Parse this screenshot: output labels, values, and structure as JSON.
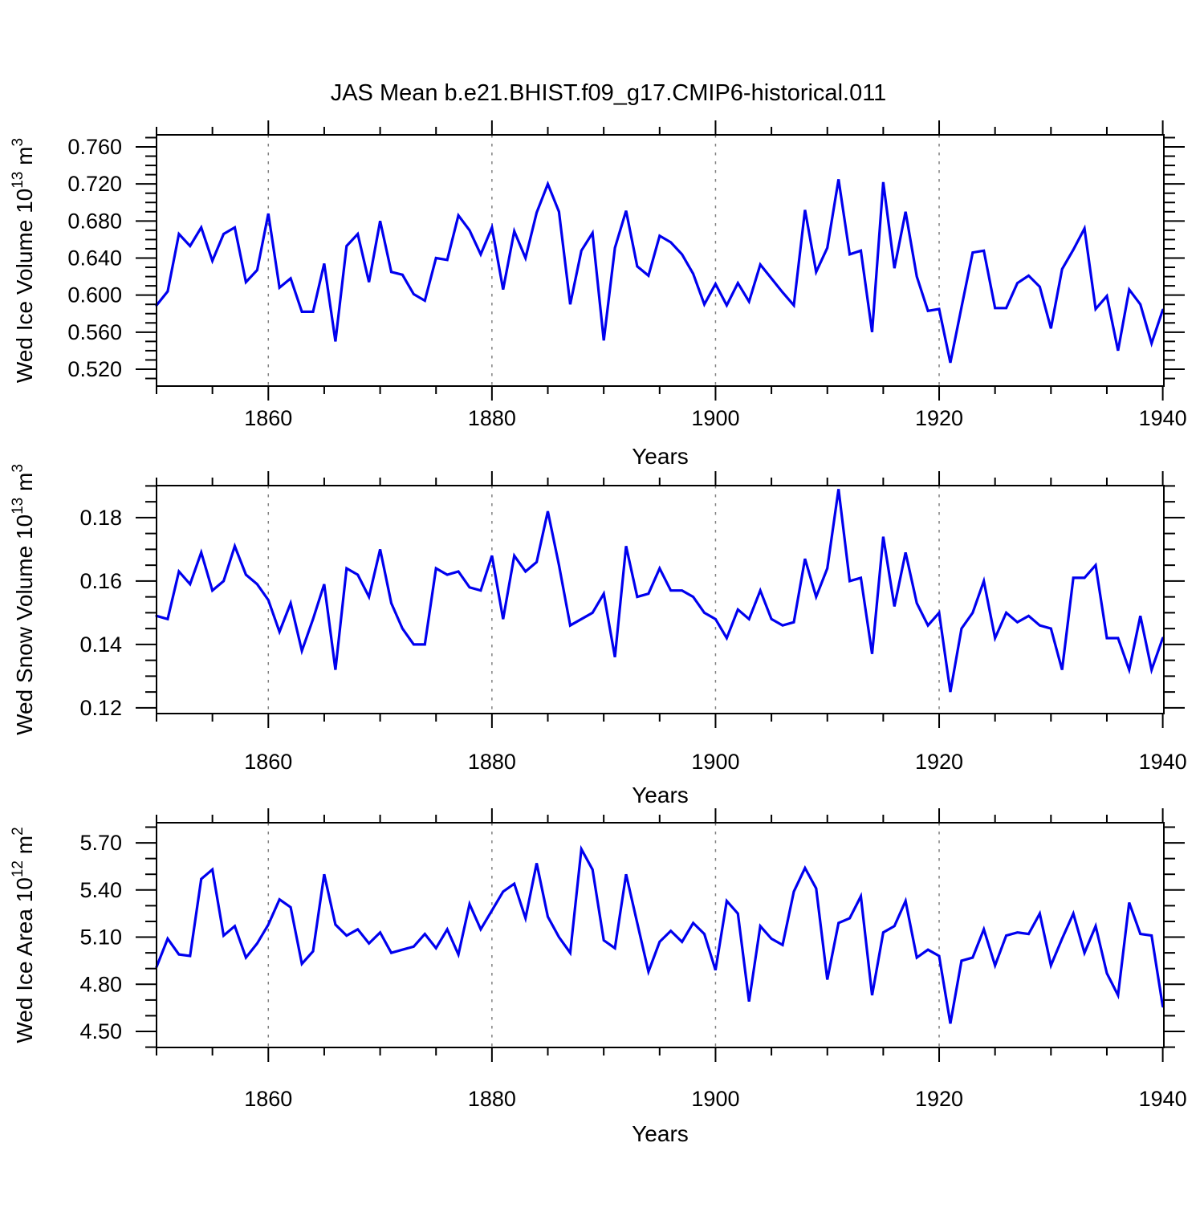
{
  "title": "JAS Mean b.e21.BHIST.f09_g17.CMIP6-historical.011",
  "style": {
    "line_color": "#0000ee",
    "axis_color": "#000000",
    "grid_color": "#7f7f7f"
  },
  "x_axis": {
    "label": "Years",
    "lim": [
      1850,
      1940.1
    ],
    "major_ticks": [
      1860,
      1880,
      1900,
      1920,
      1940
    ],
    "minor_step": 5,
    "grid_years": [
      1860,
      1880,
      1900,
      1920
    ]
  },
  "chart_data": [
    {
      "type": "line",
      "name": "wed-ice-volume",
      "ylabel_text": "Wed Ice Volume 10^13 m^3",
      "ylabel": {
        "prefix": "Wed Ice Volume 10",
        "exp": "13",
        "unit": " m",
        "unit_exp": "3"
      },
      "ylim": [
        0.5018,
        0.773
      ],
      "yticks": [
        0.52,
        0.56,
        0.6,
        0.64,
        0.68,
        0.72,
        0.76
      ],
      "ytick_labels": [
        "0.520",
        "0.560",
        "0.600",
        "0.640",
        "0.680",
        "0.720",
        "0.760"
      ],
      "yminor_step": 0.01,
      "x_start": 1850,
      "values": [
        0.589,
        0.604,
        0.666,
        0.653,
        0.673,
        0.637,
        0.666,
        0.673,
        0.614,
        0.627,
        0.688,
        0.608,
        0.618,
        0.582,
        0.582,
        0.634,
        0.55,
        0.653,
        0.666,
        0.614,
        0.68,
        0.625,
        0.622,
        0.601,
        0.594,
        0.64,
        0.638,
        0.686,
        0.67,
        0.644,
        0.673,
        0.606,
        0.669,
        0.64,
        0.689,
        0.72,
        0.69,
        0.59,
        0.648,
        0.667,
        0.551,
        0.651,
        0.691,
        0.631,
        0.621,
        0.664,
        0.657,
        0.644,
        0.623,
        0.59,
        0.612,
        0.589,
        0.613,
        0.593,
        0.633,
        0.618,
        0.603,
        0.589,
        0.692,
        0.625,
        0.651,
        0.725,
        0.644,
        0.648,
        0.56,
        0.722,
        0.629,
        0.69,
        0.62,
        0.583,
        0.585,
        0.527,
        0.587,
        0.646,
        0.648,
        0.586,
        0.586,
        0.613,
        0.621,
        0.609,
        0.564,
        0.628,
        0.649,
        0.672,
        0.585,
        0.599,
        0.54,
        0.606,
        0.59,
        0.548,
        0.584
      ]
    },
    {
      "type": "line",
      "name": "wed-snow-volume",
      "ylabel_text": "Wed Snow Volume 10^13 m^3",
      "ylabel": {
        "prefix": "Wed Snow Volume 10",
        "exp": "13",
        "unit": " m",
        "unit_exp": "3"
      },
      "ylim": [
        0.1182,
        0.1901
      ],
      "yticks": [
        0.12,
        0.14,
        0.16,
        0.18
      ],
      "ytick_labels": [
        "0.12",
        "0.14",
        "0.16",
        "0.18"
      ],
      "yminor_step": 0.005,
      "x_start": 1850,
      "values": [
        0.149,
        0.148,
        0.163,
        0.159,
        0.169,
        0.157,
        0.16,
        0.171,
        0.162,
        0.159,
        0.154,
        0.144,
        0.153,
        0.138,
        0.148,
        0.159,
        0.132,
        0.164,
        0.162,
        0.155,
        0.17,
        0.153,
        0.145,
        0.14,
        0.14,
        0.164,
        0.162,
        0.163,
        0.158,
        0.157,
        0.168,
        0.148,
        0.168,
        0.163,
        0.166,
        0.182,
        0.165,
        0.146,
        0.148,
        0.15,
        0.156,
        0.136,
        0.171,
        0.155,
        0.156,
        0.164,
        0.157,
        0.157,
        0.155,
        0.15,
        0.148,
        0.142,
        0.151,
        0.148,
        0.157,
        0.148,
        0.146,
        0.147,
        0.167,
        0.155,
        0.164,
        0.189,
        0.16,
        0.161,
        0.137,
        0.174,
        0.152,
        0.169,
        0.153,
        0.146,
        0.15,
        0.125,
        0.145,
        0.15,
        0.16,
        0.142,
        0.15,
        0.147,
        0.149,
        0.146,
        0.145,
        0.132,
        0.161,
        0.161,
        0.165,
        0.142,
        0.142,
        0.132,
        0.149,
        0.132,
        0.142
      ]
    },
    {
      "type": "line",
      "name": "wed-ice-area",
      "ylabel_text": "Wed Ice Area 10^12 m^2",
      "ylabel": {
        "prefix": "Wed Ice Area 10",
        "exp": "12",
        "unit": " m",
        "unit_exp": "2"
      },
      "ylim": [
        4.398,
        5.828
      ],
      "yticks": [
        4.5,
        4.8,
        5.1,
        5.4,
        5.7
      ],
      "ytick_labels": [
        "4.50",
        "4.80",
        "5.10",
        "5.40",
        "5.70"
      ],
      "yminor_step": 0.1,
      "x_start": 1850,
      "values": [
        4.91,
        5.09,
        4.99,
        4.98,
        5.47,
        5.53,
        5.11,
        5.17,
        4.97,
        5.06,
        5.18,
        5.34,
        5.29,
        4.93,
        5.01,
        5.5,
        5.18,
        5.11,
        5.15,
        5.06,
        5.13,
        5.0,
        5.02,
        5.04,
        5.12,
        5.03,
        5.15,
        4.99,
        5.31,
        5.15,
        5.27,
        5.39,
        5.44,
        5.22,
        5.57,
        5.23,
        5.1,
        5.0,
        5.66,
        5.53,
        5.08,
        5.03,
        5.5,
        5.19,
        4.88,
        5.07,
        5.14,
        5.07,
        5.19,
        5.12,
        4.89,
        5.33,
        5.25,
        4.69,
        5.17,
        5.09,
        5.05,
        5.39,
        5.54,
        5.41,
        4.83,
        5.19,
        5.22,
        5.36,
        4.73,
        5.13,
        5.17,
        5.33,
        4.97,
        5.02,
        4.98,
        4.55,
        4.95,
        4.97,
        5.15,
        4.92,
        5.11,
        5.13,
        5.12,
        5.25,
        4.92,
        5.09,
        5.25,
        5.0,
        5.17,
        4.87,
        4.73,
        5.32,
        5.12,
        5.11,
        4.66
      ]
    }
  ]
}
